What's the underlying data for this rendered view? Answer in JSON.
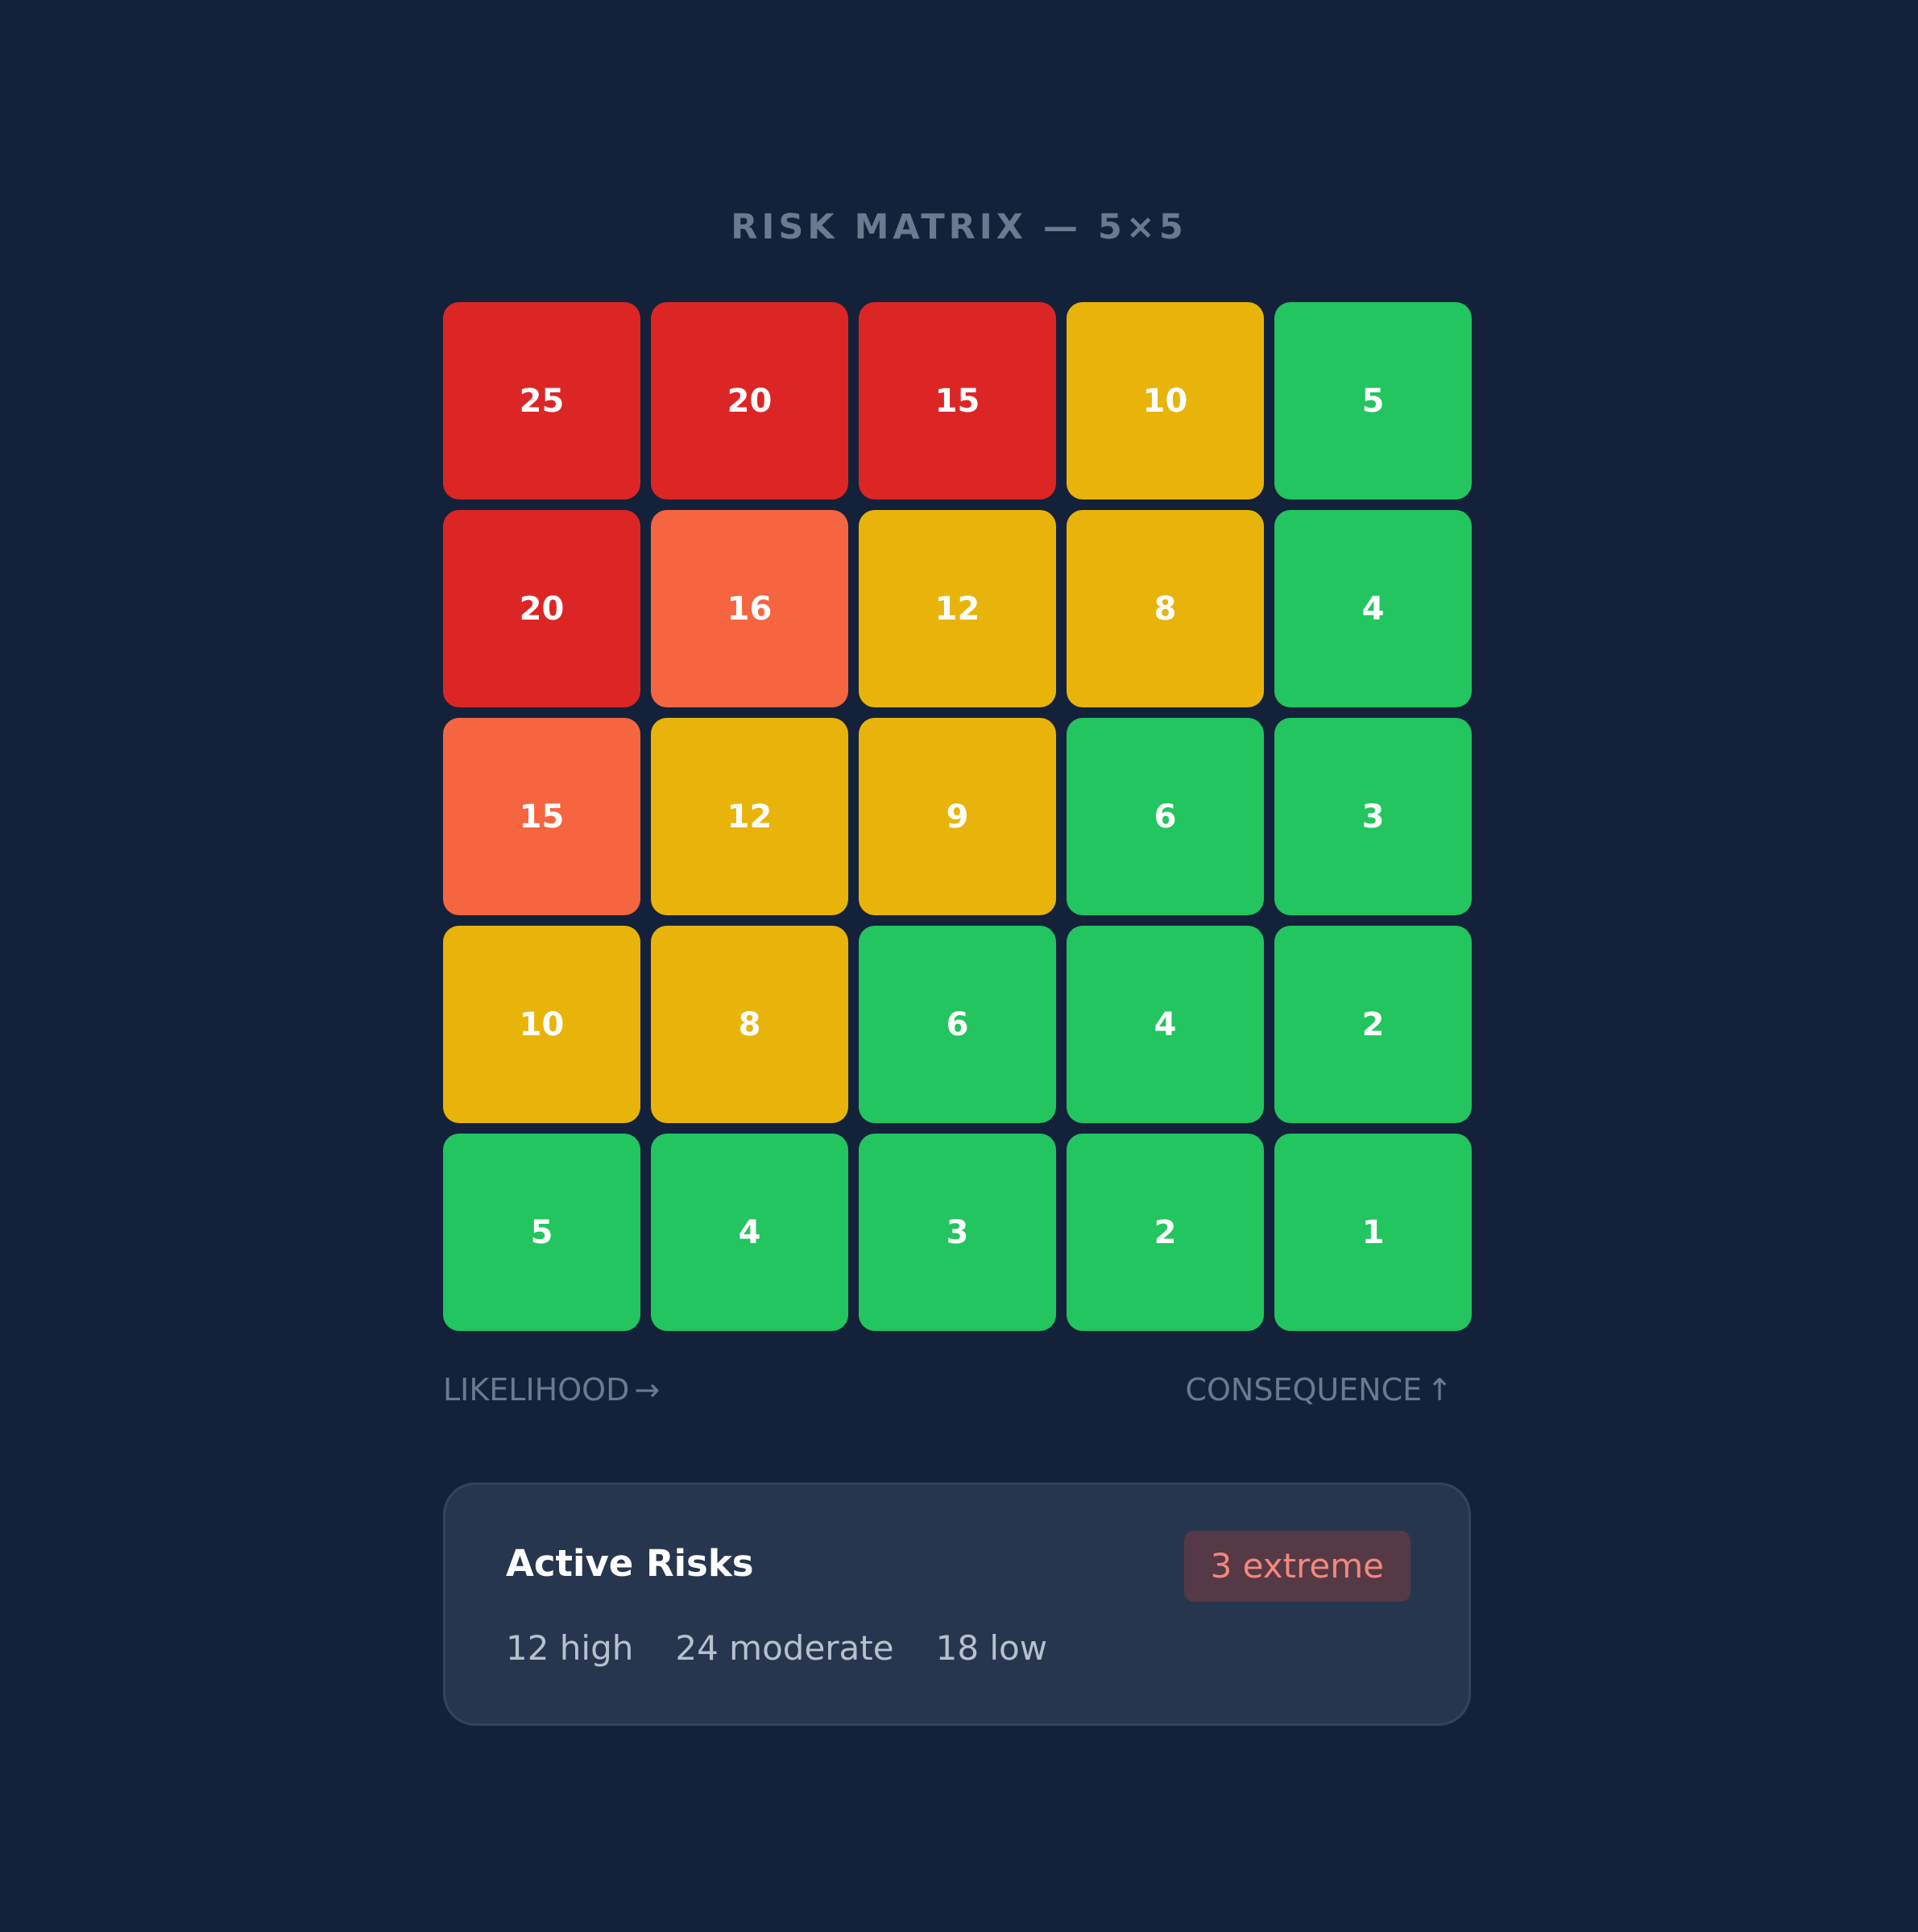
{
  "title": "RISK MATRIX — 5×5",
  "colors": {
    "background": "#13223a",
    "extreme": "#dc2626",
    "high": "#f56540",
    "moderate": "#e8b40a",
    "low": "#22c55e",
    "badge_bg": "#553946",
    "badge_text": "#f4877b"
  },
  "chart_data": {
    "type": "heatmap",
    "rows": [
      [
        25,
        20,
        15,
        10,
        5
      ],
      [
        20,
        16,
        12,
        8,
        4
      ],
      [
        15,
        12,
        9,
        6,
        3
      ],
      [
        10,
        8,
        6,
        4,
        2
      ],
      [
        5,
        4,
        3,
        2,
        1
      ]
    ],
    "levels": [
      [
        "extreme",
        "extreme",
        "extreme",
        "moderate",
        "low"
      ],
      [
        "extreme",
        "high",
        "moderate",
        "moderate",
        "low"
      ],
      [
        "high",
        "moderate",
        "moderate",
        "low",
        "low"
      ],
      [
        "moderate",
        "moderate",
        "low",
        "low",
        "low"
      ],
      [
        "low",
        "low",
        "low",
        "low",
        "low"
      ]
    ],
    "xlabel": "LIKELIHOOD",
    "ylabel": "CONSEQUENCE"
  },
  "axes": {
    "x_arrow": "→",
    "y_arrow": "↑"
  },
  "summary": {
    "title": "Active Risks",
    "badge": "3 extreme",
    "high": "12 high",
    "moderate": "24 moderate",
    "low": "18 low"
  }
}
